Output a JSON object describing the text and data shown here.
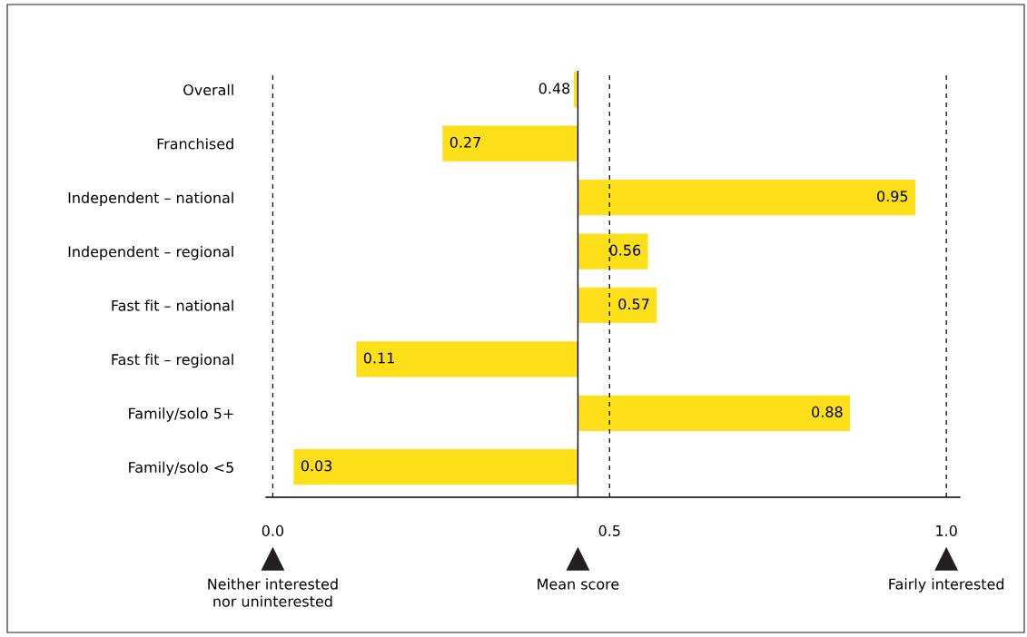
{
  "chart_data": {
    "type": "bar",
    "orientation": "horizontal",
    "categories": [
      "Overall",
      "Franchised",
      "Independent – national",
      "Independent – regional",
      "Fast fit – national",
      "Fast fit – regional",
      "Family/solo 5+",
      "Family/solo <5"
    ],
    "base": [
      0.453,
      0.453,
      0.453,
      0.453,
      0.453,
      0.453,
      0.453,
      0.453
    ],
    "values": [
      -0.006,
      -0.201,
      0.501,
      0.104,
      0.117,
      -0.329,
      0.404,
      -0.422
    ],
    "annotations": [
      {
        "text": "0.48",
        "x": 0.447,
        "y": "Overall"
      },
      {
        "text": "0.27",
        "x": 0.252,
        "y": "Franchised"
      },
      {
        "text": "0.95",
        "x": 0.954,
        "y": "Independent – national"
      },
      {
        "text": "0.56",
        "x": 0.557,
        "y": "Independent – regional"
      },
      {
        "text": "0.57",
        "x": 0.57,
        "y": "Fast fit – national"
      },
      {
        "text": "0.11",
        "x": 0.124,
        "y": "Fast fit – regional"
      },
      {
        "text": "0.88",
        "x": 0.857,
        "y": "Family/solo 5+"
      },
      {
        "text": "0.03",
        "x": 0.031,
        "y": "Family/solo <5"
      },
      "Neither interested\nnor uninterested",
      "Mean score",
      "Fairly interested"
    ],
    "color": "#fde01a",
    "xlim": [
      -0.01,
      1.02
    ],
    "xticks": [
      {
        "value": 0,
        "label": "0.0"
      },
      0.5,
      {
        "value": 1,
        "label": "1.0"
      }
    ],
    "grid": false,
    "legend": false,
    "ref_lines": [
      {
        "axis": "x",
        "value": 0,
        "line_style": "dashed",
        "color": "#000000"
      },
      {
        "axis": "x",
        "value": 0.453,
        "line_style": "solid",
        "color": "#000000"
      },
      {
        "axis": "x",
        "value": 0.5,
        "line_style": "dashed",
        "color": "#000000"
      },
      {
        "axis": "x",
        "value": 1,
        "line_style": "dashed",
        "color": "#000000"
      }
    ]
  }
}
